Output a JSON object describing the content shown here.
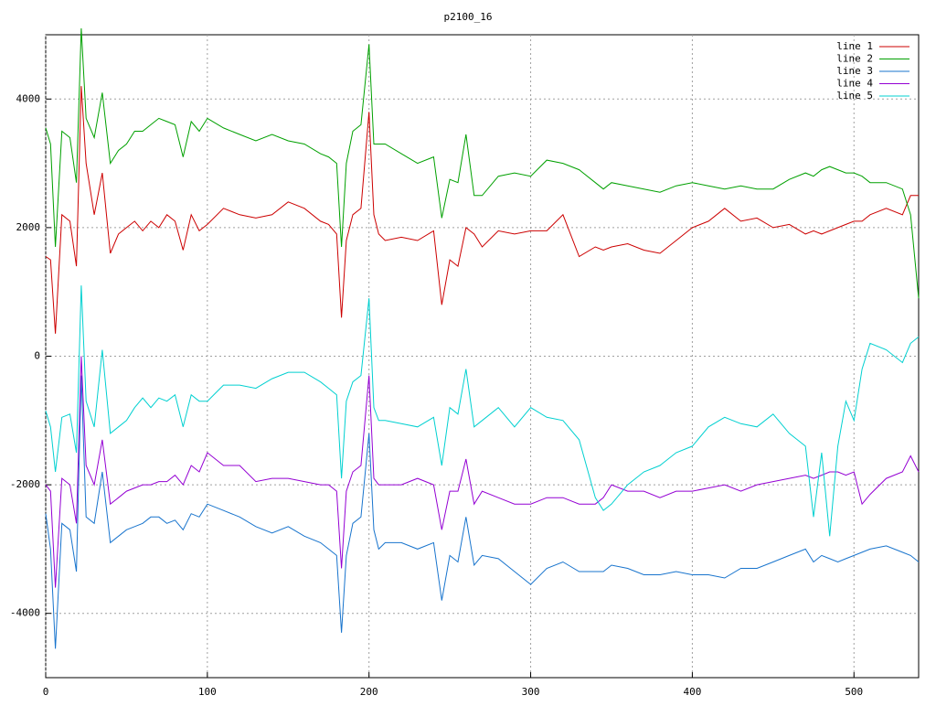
{
  "chart_data": {
    "type": "line",
    "title": "p2100_16",
    "x": [
      0,
      3,
      6,
      10,
      15,
      19,
      22,
      25,
      30,
      35,
      40,
      45,
      50,
      55,
      60,
      65,
      70,
      75,
      80,
      85,
      90,
      95,
      100,
      110,
      120,
      130,
      140,
      150,
      160,
      170,
      175,
      180,
      183,
      186,
      190,
      195,
      200,
      203,
      206,
      210,
      220,
      230,
      240,
      245,
      250,
      255,
      260,
      265,
      270,
      280,
      290,
      300,
      310,
      320,
      330,
      340,
      345,
      350,
      360,
      370,
      380,
      390,
      400,
      410,
      420,
      430,
      440,
      450,
      460,
      470,
      475,
      480,
      485,
      490,
      495,
      500,
      505,
      510,
      520,
      530,
      535,
      540
    ],
    "series": [
      {
        "name": "line 1",
        "color": "#cc0000",
        "values": [
          1550,
          1500,
          350,
          2200,
          2100,
          1400,
          4200,
          3000,
          2200,
          2850,
          1600,
          1900,
          2000,
          2100,
          1950,
          2100,
          2000,
          2200,
          2100,
          1650,
          2200,
          1950,
          2050,
          2300,
          2200,
          2150,
          2200,
          2400,
          2300,
          2100,
          2050,
          1900,
          600,
          1800,
          2200,
          2300,
          3800,
          2200,
          1900,
          1800,
          1850,
          1800,
          1950,
          800,
          1500,
          1400,
          2000,
          1900,
          1700,
          1950,
          1900,
          1950,
          1950,
          2200,
          1550,
          1700,
          1650,
          1700,
          1750,
          1650,
          1600,
          1800,
          2000,
          2100,
          2300,
          2100,
          2150,
          2000,
          2050,
          1900,
          1950,
          1900,
          1950,
          2000,
          2050,
          2100,
          2100,
          2200,
          2300,
          2200,
          2500,
          2500
        ]
      },
      {
        "name": "line 2",
        "color": "#00a000",
        "values": [
          3550,
          3300,
          1700,
          3500,
          3400,
          2700,
          5100,
          3700,
          3400,
          4100,
          3000,
          3200,
          3300,
          3500,
          3500,
          3600,
          3700,
          3650,
          3600,
          3100,
          3650,
          3500,
          3700,
          3550,
          3450,
          3350,
          3450,
          3350,
          3300,
          3150,
          3100,
          3000,
          1700,
          3000,
          3500,
          3600,
          4850,
          3300,
          3300,
          3300,
          3150,
          3000,
          3100,
          2150,
          2750,
          2700,
          3450,
          2500,
          2500,
          2800,
          2850,
          2800,
          3050,
          3000,
          2900,
          2700,
          2600,
          2700,
          2650,
          2600,
          2550,
          2650,
          2700,
          2650,
          2600,
          2650,
          2600,
          2600,
          2750,
          2850,
          2800,
          2900,
          2950,
          2900,
          2850,
          2850,
          2800,
          2700,
          2700,
          2600,
          2200,
          900
        ]
      },
      {
        "name": "line 3",
        "color": "#1874cd",
        "values": [
          -2450,
          -3000,
          -4550,
          -2600,
          -2700,
          -3350,
          -300,
          -2500,
          -2600,
          -1800,
          -2900,
          -2800,
          -2700,
          -2650,
          -2600,
          -2500,
          -2500,
          -2600,
          -2550,
          -2700,
          -2450,
          -2500,
          -2300,
          -2400,
          -2500,
          -2650,
          -2750,
          -2650,
          -2800,
          -2900,
          -3000,
          -3100,
          -4300,
          -3100,
          -2600,
          -2500,
          -1200,
          -2700,
          -3000,
          -2900,
          -2900,
          -3000,
          -2900,
          -3800,
          -3100,
          -3200,
          -2500,
          -3250,
          -3100,
          -3150,
          -3350,
          -3550,
          -3300,
          -3200,
          -3350,
          -3350,
          -3350,
          -3250,
          -3300,
          -3400,
          -3400,
          -3350,
          -3400,
          -3400,
          -3450,
          -3300,
          -3300,
          -3200,
          -3100,
          -3000,
          -3200,
          -3100,
          -3150,
          -3200,
          -3150,
          -3100,
          -3050,
          -3000,
          -2950,
          -3050,
          -3100,
          -3200
        ]
      },
      {
        "name": "line 4",
        "color": "#9400d3",
        "values": [
          -2000,
          -2100,
          -3600,
          -1900,
          -2000,
          -2600,
          0,
          -1700,
          -2000,
          -1300,
          -2300,
          -2200,
          -2100,
          -2050,
          -2000,
          -2000,
          -1950,
          -1950,
          -1850,
          -2000,
          -1700,
          -1800,
          -1500,
          -1700,
          -1700,
          -1950,
          -1900,
          -1900,
          -1950,
          -2000,
          -2000,
          -2100,
          -3300,
          -2100,
          -1800,
          -1700,
          -300,
          -1900,
          -2000,
          -2000,
          -2000,
          -1900,
          -2000,
          -2700,
          -2100,
          -2100,
          -1600,
          -2300,
          -2100,
          -2200,
          -2300,
          -2300,
          -2200,
          -2200,
          -2300,
          -2300,
          -2200,
          -2000,
          -2100,
          -2100,
          -2200,
          -2100,
          -2100,
          -2050,
          -2000,
          -2100,
          -2000,
          -1950,
          -1900,
          -1850,
          -1900,
          -1850,
          -1800,
          -1800,
          -1850,
          -1800,
          -2300,
          -2150,
          -1900,
          -1800,
          -1550,
          -1800
        ]
      },
      {
        "name": "line 5",
        "color": "#00d0d0",
        "values": [
          -850,
          -1100,
          -1800,
          -950,
          -900,
          -1500,
          1100,
          -700,
          -1100,
          100,
          -1200,
          -1100,
          -1000,
          -800,
          -650,
          -800,
          -650,
          -700,
          -600,
          -1100,
          -600,
          -700,
          -700,
          -450,
          -450,
          -500,
          -350,
          -250,
          -250,
          -400,
          -500,
          -600,
          -1900,
          -700,
          -400,
          -300,
          900,
          -800,
          -1000,
          -1000,
          -1050,
          -1100,
          -950,
          -1700,
          -800,
          -900,
          -200,
          -1100,
          -1000,
          -800,
          -1100,
          -800,
          -950,
          -1000,
          -1300,
          -2200,
          -2400,
          -2300,
          -2000,
          -1800,
          -1700,
          -1500,
          -1400,
          -1100,
          -950,
          -1050,
          -1100,
          -900,
          -1200,
          -1400,
          -2500,
          -1500,
          -2800,
          -1400,
          -700,
          -1000,
          -200,
          200,
          100,
          -100,
          200,
          300
        ]
      }
    ],
    "xlim": [
      0,
      540
    ],
    "ylim": [
      -5000,
      5000
    ],
    "xticks": [
      0,
      100,
      200,
      300,
      400,
      500
    ],
    "yticks": [
      -4000,
      -2000,
      0,
      2000,
      4000
    ],
    "grid": true,
    "legend": "top-right"
  }
}
